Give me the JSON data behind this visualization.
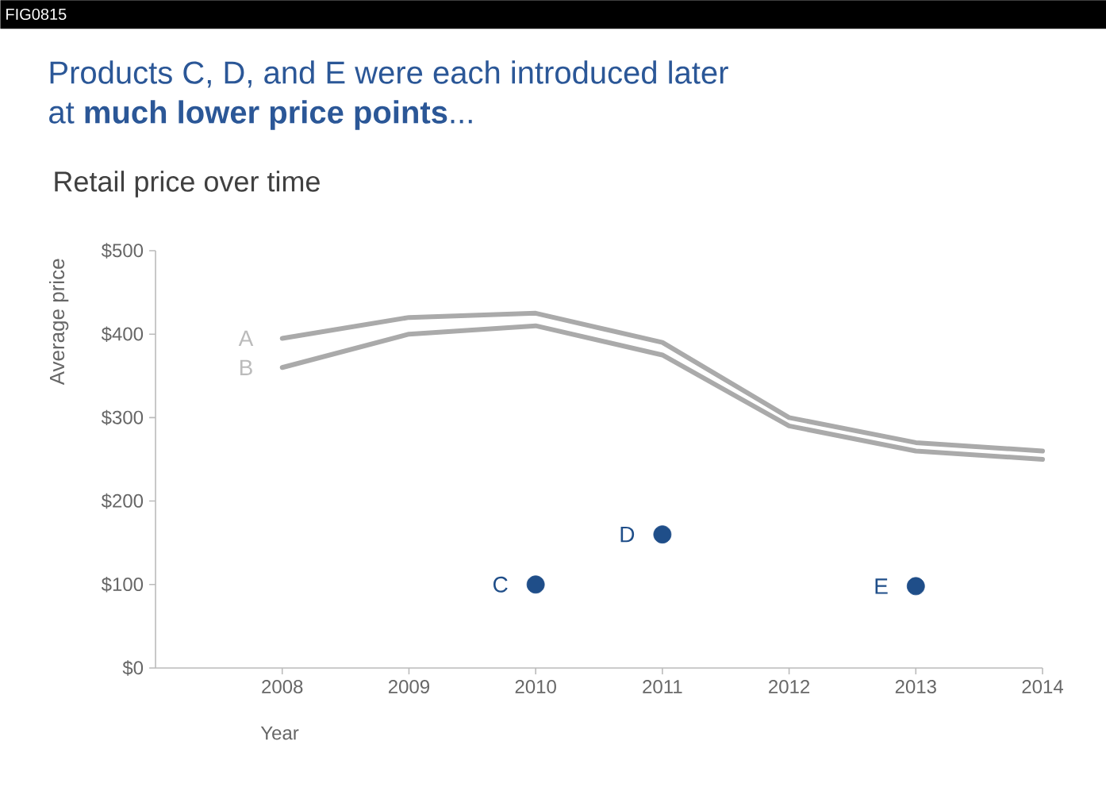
{
  "chart_data": {
    "type": "line",
    "title": "Products C, D, and E were each introduced later at **much lower price points**...",
    "subtitle": "Retail price over time",
    "xlabel": "Year",
    "ylabel": "Average price",
    "annotations": [
      "FIG0815"
    ],
    "x": [
      2008,
      2009,
      2010,
      2011,
      2012,
      2013,
      2014
    ],
    "series": [
      {
        "name": "A",
        "marker": "none",
        "color": "#aaaaaa",
        "values": [
          395,
          420,
          425,
          390,
          300,
          270,
          260
        ]
      },
      {
        "name": "B",
        "marker": "none",
        "color": "#aaaaaa",
        "values": [
          360,
          400,
          410,
          375,
          290,
          260,
          250
        ]
      },
      {
        "name": "C",
        "type": "scatter",
        "marker": "circle",
        "color": "#1f4e89",
        "x": [
          2010
        ],
        "values": [
          100
        ]
      },
      {
        "name": "D",
        "type": "scatter",
        "marker": "circle",
        "color": "#1f4e89",
        "x": [
          2011
        ],
        "values": [
          160
        ]
      },
      {
        "name": "E",
        "type": "scatter",
        "marker": "circle",
        "color": "#1f4e89",
        "x": [
          2013
        ],
        "values": [
          98
        ]
      }
    ],
    "xlim": [
      2007,
      2014
    ],
    "xticks": [
      2008,
      2009,
      2010,
      2011,
      2012,
      2013,
      2014
    ],
    "ylim": [
      0,
      500
    ],
    "yticks": [
      {
        "value": 0,
        "label": "$0"
      },
      {
        "value": 100,
        "label": "$100"
      },
      {
        "value": 200,
        "label": "$200"
      },
      {
        "value": 300,
        "label": "$300"
      },
      {
        "value": 400,
        "label": "$400"
      },
      {
        "value": 500,
        "label": "$500"
      }
    ],
    "grid": false,
    "legend": false
  }
}
